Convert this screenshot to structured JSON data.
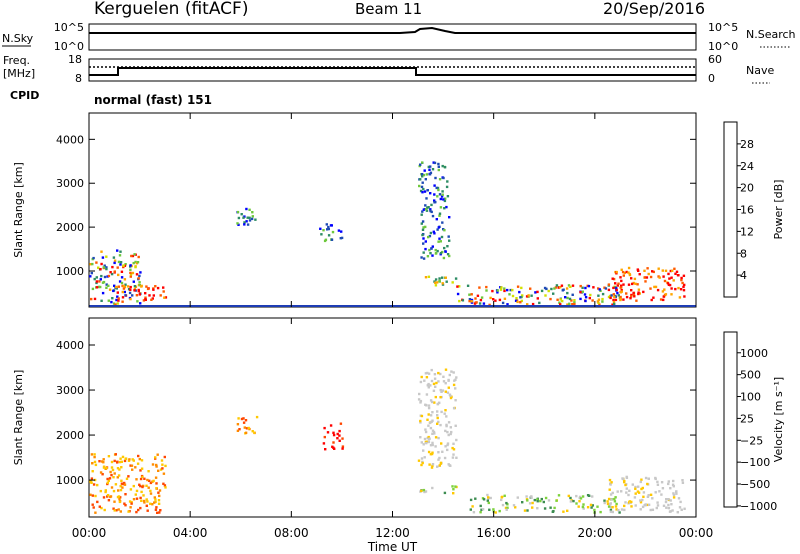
{
  "header": {
    "station": "Kerguelen (fitACF)",
    "beam": "Beam 11",
    "date": "20/Sep/2016"
  },
  "nsky_panel": {
    "left_label": "N.Sky",
    "right_label": "N.Search",
    "left_ticks": [
      "10^5",
      "10^0"
    ],
    "right_ticks": [
      "10^5",
      "10^0"
    ]
  },
  "freq_panel": {
    "left_label_1": "Freq.",
    "left_label_2": "[MHz]",
    "left_ticks": [
      "18",
      "8"
    ],
    "right_label": "Nave",
    "right_ticks": [
      "60",
      "0"
    ],
    "cpid_label": "CPID",
    "cpid_text": "normal (fast) 151"
  },
  "x_ticks": [
    "00:00",
    "04:00",
    "08:00",
    "12:00",
    "16:00",
    "20:00",
    "00:00"
  ],
  "x_label": "Time UT",
  "chart_data": [
    {
      "type": "heatmap",
      "name": "power",
      "ylabel": "Slant Range [km]",
      "yticks": [
        "1000",
        "2000",
        "3000",
        "4000"
      ],
      "ylim": [
        180,
        4600
      ],
      "xlim": [
        0,
        24
      ],
      "colorbar_label": "Power [dB]",
      "colorbar_ticks": [
        "4",
        "8",
        "12",
        "16",
        "20",
        "24",
        "28"
      ],
      "colorbar_colors": [
        "#0000ff",
        "#1e4bb4",
        "#2d8c64",
        "#6ec83c",
        "#d2e100",
        "#ffa500",
        "#ff5a00",
        "#ff0000"
      ],
      "echo_regions": [
        {
          "t": [
            0.0,
            2.0
          ],
          "r": [
            250,
            1500
          ],
          "level": "mixed"
        },
        {
          "t": [
            1.0,
            3.0
          ],
          "r": [
            350,
            700
          ],
          "level": "high"
        },
        {
          "t": [
            5.8,
            6.6
          ],
          "r": [
            2050,
            2450
          ],
          "level": "low"
        },
        {
          "t": [
            9.0,
            10.0
          ],
          "r": [
            1700,
            2100
          ],
          "level": "low"
        },
        {
          "t": [
            13.0,
            14.2
          ],
          "r": [
            1300,
            3500
          ],
          "level": "low"
        },
        {
          "t": [
            13.0,
            14.5
          ],
          "r": [
            700,
            900
          ],
          "level": "medium"
        },
        {
          "t": [
            14.5,
            21.0
          ],
          "r": [
            250,
            700
          ],
          "level": "mixed"
        },
        {
          "t": [
            20.5,
            23.5
          ],
          "r": [
            350,
            1100
          ],
          "level": "high"
        }
      ]
    },
    {
      "type": "heatmap",
      "name": "velocity",
      "ylabel": "Slant Range [km]",
      "yticks": [
        "1000",
        "2000",
        "3000",
        "4000"
      ],
      "ylim": [
        180,
        4600
      ],
      "xlim": [
        0,
        24
      ],
      "colorbar_label": "Velocity [m s⁻¹]",
      "colorbar_ticks": [
        "1000",
        "500",
        "100",
        "25",
        "−25",
        "−100",
        "−500",
        "−1000"
      ],
      "colorbar_colors": [
        "#1e3cb4",
        "#3c8c50",
        "#7dd23c",
        "#c8c8c8",
        "#ffc800",
        "#ff8c00",
        "#ff4600",
        "#ff0000"
      ],
      "echo_regions": [
        {
          "t": [
            0.0,
            3.0
          ],
          "r": [
            300,
            1600
          ],
          "level": "negative"
        },
        {
          "t": [
            5.8,
            6.6
          ],
          "r": [
            2050,
            2450
          ],
          "level": "negative"
        },
        {
          "t": [
            9.2,
            10.0
          ],
          "r": [
            1700,
            2300
          ],
          "level": "strong-negative"
        },
        {
          "t": [
            13.0,
            14.5
          ],
          "r": [
            1300,
            3500
          ],
          "level": "near-zero"
        },
        {
          "t": [
            13.0,
            14.5
          ],
          "r": [
            700,
            900
          ],
          "level": "positive"
        },
        {
          "t": [
            15.0,
            21.0
          ],
          "r": [
            300,
            700
          ],
          "level": "positive"
        },
        {
          "t": [
            20.5,
            23.5
          ],
          "r": [
            300,
            1100
          ],
          "level": "near-zero"
        }
      ]
    }
  ]
}
